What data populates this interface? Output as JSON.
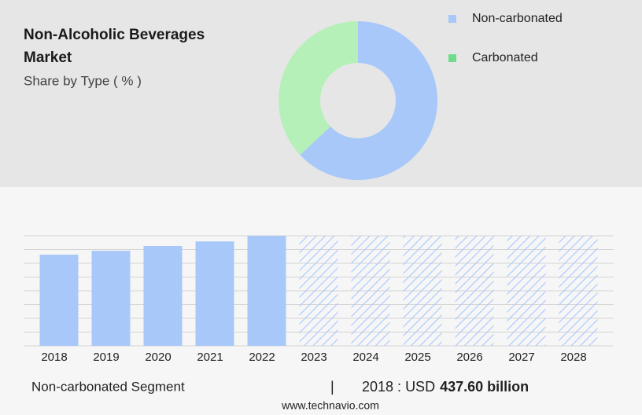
{
  "chart_data": [
    {
      "type": "pie",
      "title": "Non-Alcoholic Beverages Market",
      "subtitle": "Share by Type ( % )",
      "categories": [
        "Non-carbonated",
        "Carbonated"
      ],
      "values": [
        63,
        37
      ],
      "colors": [
        "#a8c8fa",
        "#b5f0b8"
      ],
      "legend_colors": [
        "#a8c8fa",
        "#6fdc8c"
      ],
      "donut": true
    },
    {
      "type": "bar",
      "categories": [
        "2018",
        "2019",
        "2020",
        "2021",
        "2022",
        "2023",
        "2024",
        "2025",
        "2026",
        "2027",
        "2028"
      ],
      "values": [
        437.6,
        456,
        479,
        501,
        528,
        null,
        null,
        null,
        null,
        null,
        null
      ],
      "value_labels": [
        "437.60 billion",
        null,
        null,
        null,
        null,
        null,
        null,
        null,
        null,
        null,
        null
      ],
      "color": "#a8c8fa",
      "ylim": [
        0,
        528
      ],
      "grid": true,
      "segment_label": "Non-carbonated Segment",
      "currency": "USD",
      "source": "www.technavio.com"
    }
  ]
}
